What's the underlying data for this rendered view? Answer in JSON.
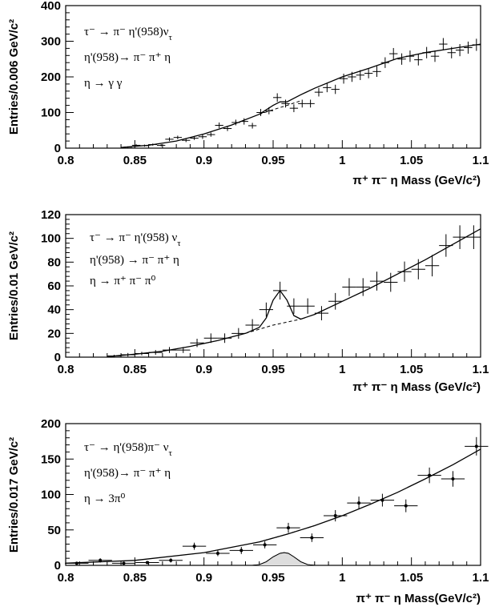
{
  "chart_data": [
    {
      "type": "scatter",
      "title": "",
      "ylabel": "Entries/0.006 GeV/c²",
      "xlabel": "π⁺ π⁻ η Mass (GeV/c²)",
      "xlim": [
        0.8,
        1.1
      ],
      "ylim": [
        0,
        400
      ],
      "xticks": [
        "0.8",
        "0.85",
        "0.9",
        "0.95",
        "1",
        "1.05",
        "1.1"
      ],
      "yticks": [
        "0",
        "100",
        "200",
        "300",
        "400"
      ],
      "annotations": [
        "τ⁻ → π⁻ η'(958)ν_τ",
        "η'(958)→ π⁻ π⁺ η",
        "η → γ γ"
      ],
      "marker": "none",
      "x_halfwidth": 0.003,
      "series": [
        {
          "x": [
            0.845,
            0.851,
            0.857,
            0.863,
            0.869,
            0.875,
            0.881,
            0.887,
            0.893,
            0.899,
            0.905,
            0.911,
            0.917,
            0.923,
            0.929,
            0.935,
            0.941,
            0.947,
            0.953,
            0.959,
            0.965,
            0.971,
            0.977,
            0.983,
            0.989,
            0.995,
            1.001,
            1.007,
            1.013,
            1.019,
            1.025,
            1.031,
            1.037,
            1.043,
            1.049,
            1.055,
            1.061,
            1.067,
            1.073,
            1.079,
            1.085,
            1.091,
            1.097
          ],
          "y": [
            3,
            8,
            7,
            10,
            8,
            25,
            30,
            22,
            28,
            32,
            38,
            64,
            55,
            72,
            75,
            63,
            100,
            105,
            142,
            125,
            112,
            125,
            125,
            157,
            170,
            165,
            195,
            200,
            205,
            210,
            215,
            240,
            265,
            250,
            258,
            248,
            268,
            258,
            292,
            268,
            275,
            282,
            290
          ],
          "yerr": [
            2,
            3,
            3,
            3,
            3,
            5,
            5,
            5,
            5,
            6,
            6,
            8,
            7,
            8,
            9,
            8,
            10,
            10,
            12,
            11,
            11,
            11,
            11,
            12,
            13,
            13,
            14,
            14,
            14,
            14,
            15,
            15,
            16,
            16,
            16,
            16,
            16,
            16,
            17,
            16,
            17,
            17,
            17
          ]
        }
      ],
      "fit": {
        "x": [
          0.84,
          0.86,
          0.88,
          0.9,
          0.92,
          0.94,
          0.95,
          0.955,
          0.96,
          0.97,
          0.98,
          1.0,
          1.02,
          1.04,
          1.06,
          1.08,
          1.1
        ],
        "y": [
          2,
          8,
          20,
          40,
          65,
          95,
          120,
          130,
          130,
          150,
          168,
          200,
          225,
          252,
          268,
          280,
          292
        ]
      },
      "background": {
        "x": [
          0.94,
          0.95,
          0.955,
          0.96,
          0.97
        ],
        "y": [
          95,
          108,
          114,
          120,
          133
        ]
      }
    },
    {
      "type": "scatter",
      "title": "",
      "ylabel": "Entries/0.01 GeV/c²",
      "xlabel": "π⁺ π⁻ η Mass (GeV/c²)",
      "xlim": [
        0.8,
        1.1
      ],
      "ylim": [
        0,
        120
      ],
      "xticks": [
        "0.8",
        "0.85",
        "0.9",
        "0.95",
        "1",
        "1.05",
        "1.1"
      ],
      "yticks": [
        "0",
        "20",
        "40",
        "60",
        "80",
        "100",
        "120"
      ],
      "annotations": [
        "τ⁻ → π⁻ η'(958) ν_τ",
        "η'(958) → π⁻ π⁺ η",
        "η → π⁺ π⁻ π⁰"
      ],
      "marker": "none",
      "x_halfwidth": 0.005,
      "series": [
        {
          "x": [
            0.835,
            0.845,
            0.855,
            0.865,
            0.875,
            0.885,
            0.895,
            0.905,
            0.915,
            0.925,
            0.935,
            0.945,
            0.955,
            0.965,
            0.975,
            0.985,
            0.995,
            1.005,
            1.015,
            1.025,
            1.035,
            1.045,
            1.055,
            1.065,
            1.075,
            1.085,
            1.095
          ],
          "y": [
            1,
            2,
            3,
            4,
            6,
            6,
            12,
            16,
            16,
            20,
            27,
            40,
            56,
            43,
            43,
            37,
            47,
            59,
            59,
            64,
            63,
            72,
            74,
            77,
            94,
            101,
            101
          ],
          "yerr": [
            1,
            1.5,
            1.5,
            2,
            2.5,
            2.5,
            3.5,
            4,
            4,
            4.5,
            5,
            6,
            7.5,
            6.5,
            6.5,
            6,
            7,
            7.5,
            7.5,
            8,
            8,
            8.5,
            8.5,
            9,
            9.5,
            10,
            10
          ]
        }
      ],
      "fit": {
        "x": [
          0.83,
          0.85,
          0.87,
          0.89,
          0.91,
          0.93,
          0.94,
          0.945,
          0.95,
          0.955,
          0.96,
          0.965,
          0.97,
          0.98,
          1.0,
          1.02,
          1.04,
          1.06,
          1.08,
          1.1
        ],
        "y": [
          0.5,
          2.5,
          5,
          9,
          14,
          20,
          25,
          33,
          48,
          56,
          48,
          35,
          32,
          36,
          47,
          58,
          70,
          82,
          95,
          108
        ]
      },
      "background": {
        "x": [
          0.93,
          0.95,
          0.97
        ],
        "y": [
          20,
          27,
          32
        ]
      }
    },
    {
      "type": "scatter",
      "title": "",
      "ylabel": "Entries/0.017 GeV/c²",
      "xlabel": "π⁺ π⁻ η Mass(GeV/c²)",
      "xlim": [
        0.8,
        1.1
      ],
      "ylim": [
        0,
        200
      ],
      "xticks": [
        "0.8",
        "0.85",
        "0.9",
        "0.95",
        "1",
        "1.05",
        "1.1"
      ],
      "yticks": [
        "0",
        "50",
        "100",
        "150",
        "200"
      ],
      "annotations": [
        "τ⁻ → η'(958)π⁻ ν_τ",
        "η'(958)→ π⁻ π⁺ η",
        "η → 3π⁰"
      ],
      "marker": "dot",
      "x_halfwidth": 0.0085,
      "series": [
        {
          "x": [
            0.808,
            0.825,
            0.842,
            0.859,
            0.876,
            0.893,
            0.91,
            0.927,
            0.944,
            0.961,
            0.978,
            0.995,
            1.012,
            1.029,
            1.046,
            1.063,
            1.08,
            1.097
          ],
          "y": [
            3,
            7,
            3,
            4,
            7,
            27,
            17,
            21,
            29,
            53,
            39,
            70,
            88,
            92,
            84,
            127,
            122,
            168
          ],
          "yerr": [
            2,
            3,
            2,
            2,
            3,
            5,
            4,
            5,
            5,
            7,
            6,
            8,
            9,
            9,
            9,
            11,
            11,
            13
          ]
        }
      ],
      "fit": {
        "x": [
          0.8,
          0.85,
          0.9,
          0.94,
          0.96,
          0.98,
          1.0,
          1.02,
          1.04,
          1.06,
          1.08,
          1.1
        ],
        "y": [
          3,
          7,
          18,
          33,
          44,
          56,
          70,
          86,
          103,
          122,
          142,
          164
        ]
      },
      "background": {
        "x": [
          0.94,
          0.96,
          0.98
        ],
        "y": [
          33,
          44,
          56
        ]
      },
      "signal": {
        "x": [
          0.935,
          0.94,
          0.945,
          0.95,
          0.955,
          0.958,
          0.961,
          0.965,
          0.97,
          0.975,
          0.98
        ],
        "y": [
          0,
          1,
          5,
          12,
          17,
          18,
          17,
          12,
          5,
          1,
          0
        ]
      }
    }
  ]
}
